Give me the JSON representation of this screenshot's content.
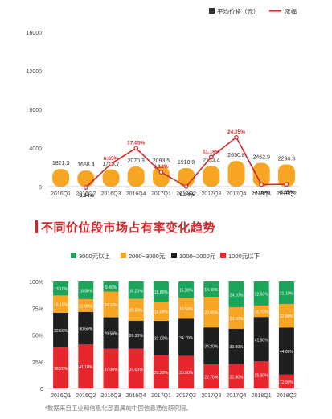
{
  "chart_data": [
    {
      "type": "bar",
      "categories": [
        "2016Q1",
        "2016Q2",
        "2016Q3",
        "2016Q4",
        "2017Q1",
        "2017Q2",
        "2017Q3",
        "2017Q4",
        "2018Q1",
        "2018Q2"
      ],
      "series": [
        {
          "name": "平均价格（元）",
          "type": "bar",
          "color": "#f6a623",
          "values": [
            1821.3,
            1658.4,
            1768.7,
            2070.3,
            2093.5,
            1918.8,
            2133.4,
            2650.8,
            2462.9,
            2294.3
          ],
          "labels": [
            "1821.3",
            "1658.4",
            "1768.7",
            "2070.3",
            "2093.5",
            "1918.8",
            "2133.4",
            "2650.8",
            "2462.9",
            "2294.3"
          ]
        },
        {
          "name": "涨幅",
          "type": "line",
          "color": "#d0282c",
          "values": [
            null,
            -8.94,
            6.65,
            17.05,
            1.12,
            -8.34,
            11.18,
            24.25,
            -7.09,
            -6.85
          ],
          "labels": [
            "",
            "-8.94%",
            "6.65%",
            "17.05%",
            "1.12%",
            "-8.34%",
            "11.18%",
            "24.25%",
            "-7.09%",
            "-6.85%"
          ]
        }
      ],
      "yticks": [
        "0",
        "4000",
        "8000",
        "12000",
        "16000"
      ],
      "ylim": [
        0,
        16000
      ],
      "legend_position": "top-right"
    },
    {
      "type": "bar",
      "stacked": true,
      "categories": [
        "2016Q1",
        "2016Q2",
        "2016Q3",
        "2016Q4",
        "2017Q1",
        "2017Q2",
        "2017Q3",
        "2017Q4",
        "2018Q1",
        "2018Q2"
      ],
      "series": [
        {
          "name": "1000元以下",
          "color": "#e8262d",
          "values": [
            38.2,
            41.1,
            37.0,
            37.0,
            31.2,
            30.5,
            22.7,
            22.8,
            25.3,
            12.9
          ],
          "labels": [
            "38.20%",
            "41.10%",
            "37.00%",
            "37.00%",
            "31.20%",
            "30.50%",
            "22.70%",
            "22.80%",
            "25.30%",
            "12.90%"
          ]
        },
        {
          "name": "1000~2000元",
          "color": "#1f1f1f",
          "values": [
            32.6,
            30.5,
            29.5,
            26.3,
            32.0,
            34.7,
            34.3,
            33.0,
            41.5,
            44.0
          ],
          "labels": [
            "32.60%",
            "30.50%",
            "29.50%",
            "26.30%",
            "32.00%",
            "34.70%",
            "34.30%",
            "33.00%",
            "41.50%",
            "44.00%"
          ]
        },
        {
          "name": "2000~3000元",
          "color": "#f6a623",
          "values": [
            16.1,
            11.9,
            24.1,
            20.5,
            18.0,
            19.5,
            28.6,
            20.1,
            10.7,
            22.0
          ],
          "labels": [
            "16.10%",
            "11.90%",
            "24.10%",
            "20.50%",
            "18.00%",
            "19.50%",
            "28.60%",
            "20.10%",
            "10.70%",
            "22.00%"
          ]
        },
        {
          "name": "3000元以上",
          "color": "#1aa55a",
          "values": [
            13.1,
            16.5,
            9.4,
            16.2,
            18.8,
            15.3,
            14.4,
            24.1,
            22.5,
            21.1
          ],
          "labels": [
            "13.10%",
            "16.50%",
            "9.40%",
            "16.20%",
            "18.80%",
            "15.30%",
            "14.40%",
            "24.10%",
            "22.50%",
            "21.10%"
          ]
        }
      ],
      "yticks": [
        "0",
        "25%",
        "50%",
        "75%",
        "100%"
      ],
      "ylim": [
        0,
        100
      ],
      "legend_position": "top"
    }
  ],
  "section_title": "不同价位段市场占有率变化趋势",
  "source_note": "*数据来自工业和信息化部直属的中国信息通信研究院。"
}
